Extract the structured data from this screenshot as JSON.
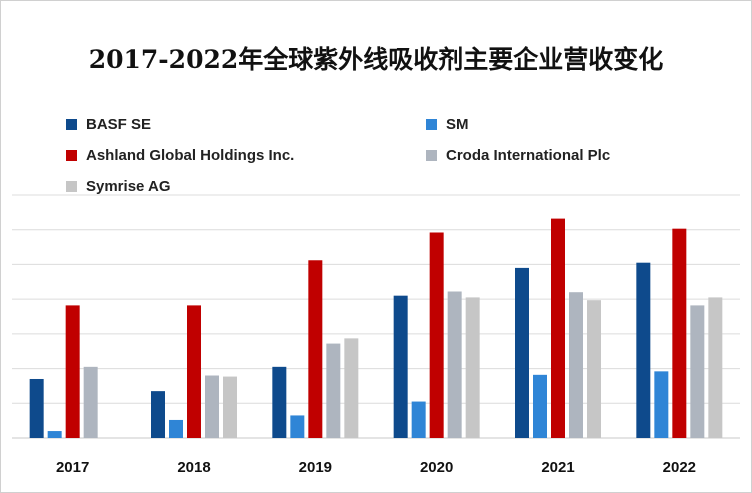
{
  "chart_data": {
    "type": "bar",
    "title": "2017-2022年全球紫外线吸收剂主要企业营收变化",
    "categories": [
      "2017",
      "2018",
      "2019",
      "2020",
      "2021",
      "2022"
    ],
    "series": [
      {
        "name": "BASF SE",
        "color": "#0e4a8c",
        "values": [
          1.7,
          1.35,
          2.05,
          4.1,
          4.9,
          5.05
        ]
      },
      {
        "name": "SM",
        "color": "#2f85d6",
        "values": [
          0.2,
          0.52,
          0.65,
          1.05,
          1.82,
          1.92
        ]
      },
      {
        "name": "Ashland Global Holdings Inc.",
        "color": "#c00000",
        "values": [
          3.82,
          3.82,
          5.12,
          5.92,
          6.32,
          6.03
        ]
      },
      {
        "name": "Croda International Plc",
        "color": "#aeb5bf",
        "values": [
          2.05,
          1.8,
          2.72,
          4.22,
          4.2,
          3.82
        ]
      },
      {
        "name": "Symrise AG",
        "color": "#c6c6c6",
        "values": [
          null,
          1.77,
          2.87,
          4.05,
          3.97,
          4.05
        ]
      }
    ],
    "xlabel": "",
    "ylabel": "",
    "ylim": [
      0,
      7
    ],
    "grid": true,
    "legend_position": "top"
  }
}
